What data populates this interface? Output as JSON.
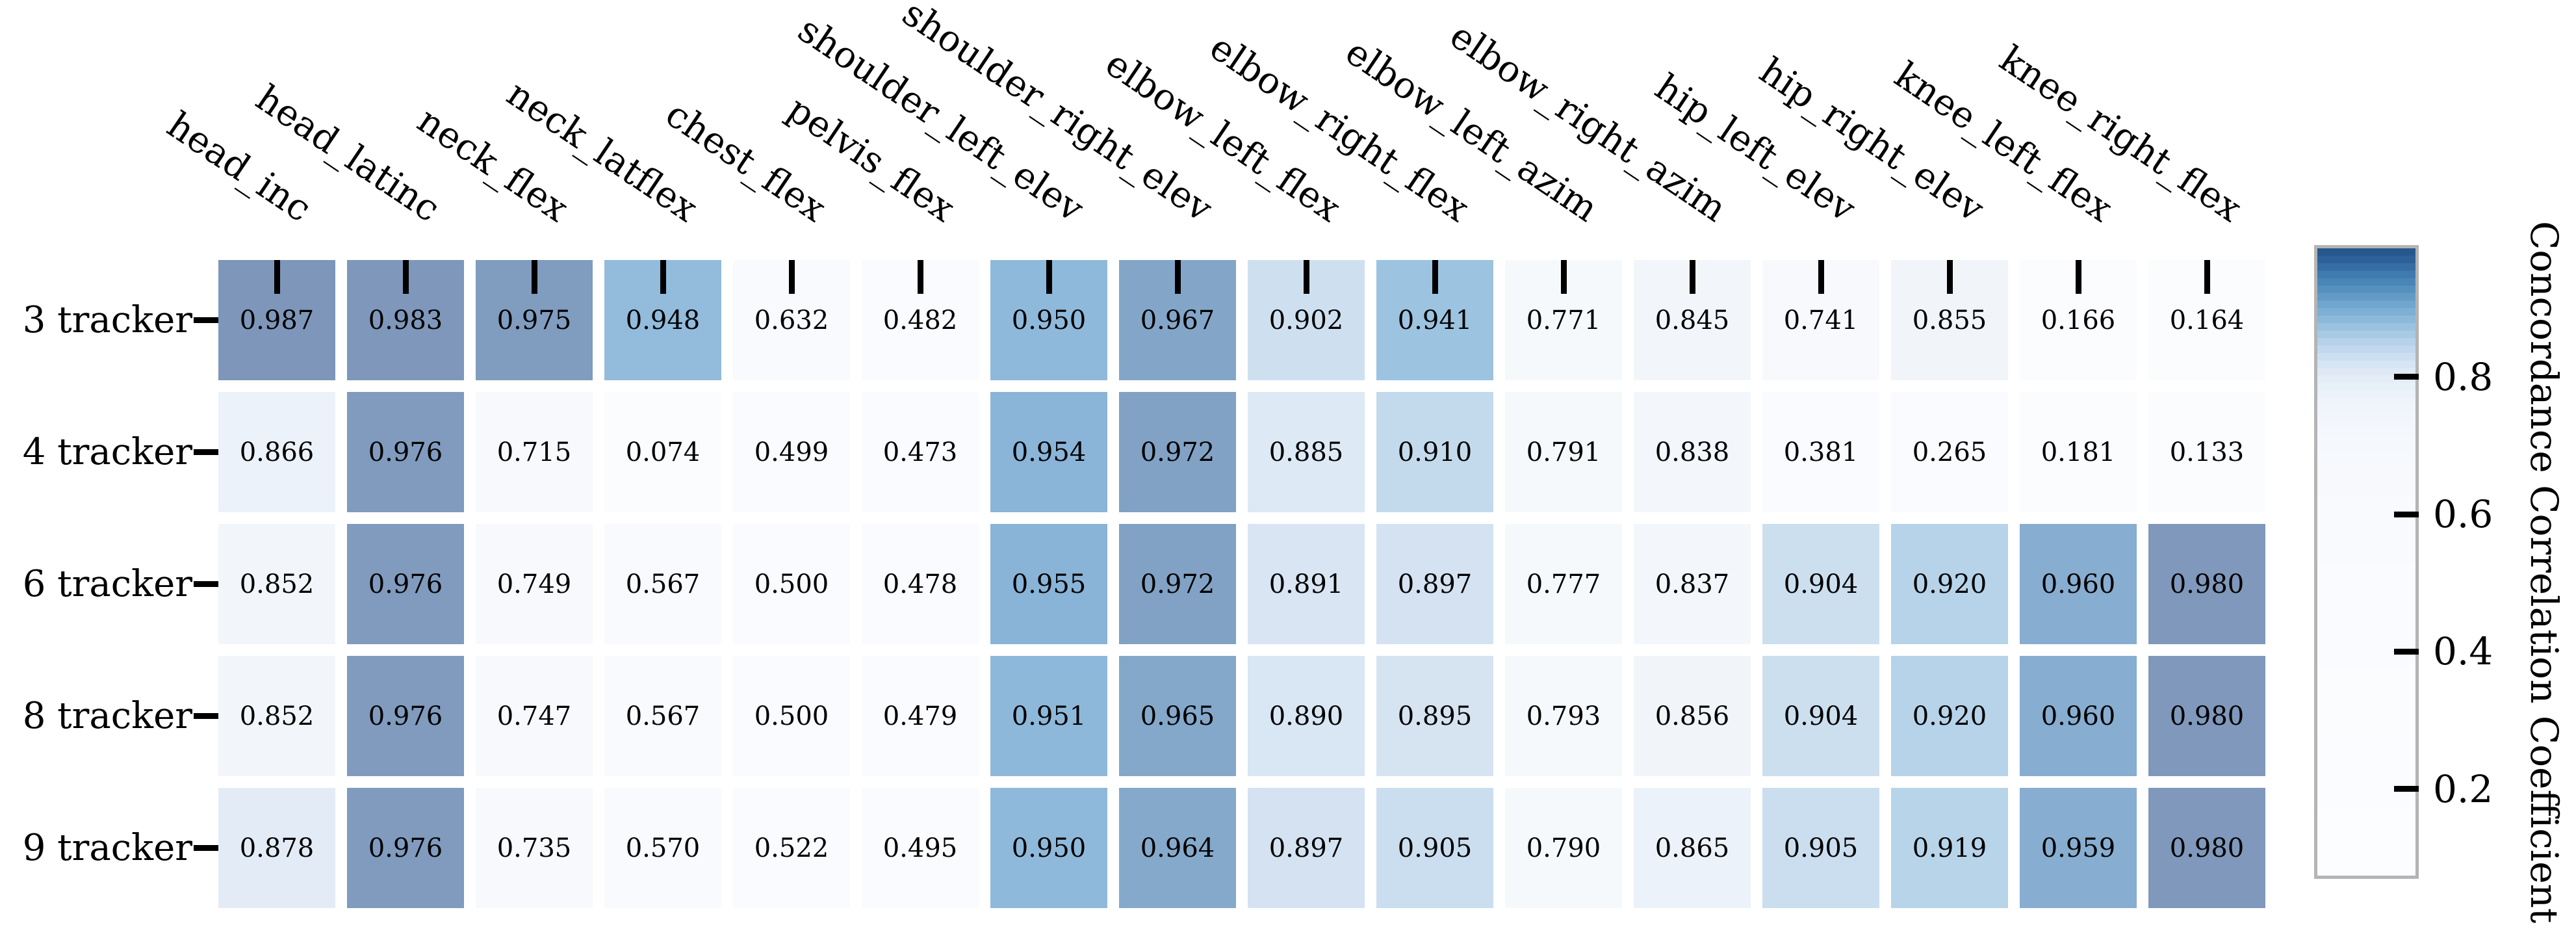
{
  "chart_data": {
    "type": "heatmap",
    "title": "",
    "xlabel": "",
    "ylabel": "",
    "rows": [
      "3 tracker",
      "4 tracker",
      "6 tracker",
      "8 tracker",
      "9 tracker"
    ],
    "columns": [
      "head_inc",
      "head_latinc",
      "neck_flex",
      "neck_latflex",
      "chest_flex",
      "pelvis_flex",
      "shoulder_left_elev",
      "shoulder_right_elev",
      "elbow_left_flex",
      "elbow_right_flex",
      "elbow_left_azim",
      "elbow_right_azim",
      "hip_left_elev",
      "hip_right_elev",
      "knee_left_flex",
      "knee_right_flex"
    ],
    "values": [
      [
        0.987,
        0.983,
        0.975,
        0.948,
        0.632,
        0.482,
        0.95,
        0.967,
        0.902,
        0.941,
        0.771,
        0.845,
        0.741,
        0.855,
        0.166,
        0.164
      ],
      [
        0.866,
        0.976,
        0.715,
        0.074,
        0.499,
        0.473,
        0.954,
        0.972,
        0.885,
        0.91,
        0.791,
        0.838,
        0.381,
        0.265,
        0.181,
        0.133
      ],
      [
        0.852,
        0.976,
        0.749,
        0.567,
        0.5,
        0.478,
        0.955,
        0.972,
        0.891,
        0.897,
        0.777,
        0.837,
        0.904,
        0.92,
        0.96,
        0.98
      ],
      [
        0.852,
        0.976,
        0.747,
        0.567,
        0.5,
        0.479,
        0.951,
        0.965,
        0.89,
        0.895,
        0.793,
        0.856,
        0.904,
        0.92,
        0.96,
        0.98
      ],
      [
        0.878,
        0.976,
        0.735,
        0.57,
        0.522,
        0.495,
        0.95,
        0.964,
        0.897,
        0.905,
        0.79,
        0.865,
        0.905,
        0.919,
        0.959,
        0.98
      ]
    ],
    "value_decimals": 3,
    "colorbar": {
      "label": "Concordance Correlation Coefficient",
      "ticks": [
        0.8,
        0.6,
        0.4,
        0.2
      ],
      "vmin": 0.074,
      "vmax": 0.987,
      "position": "right"
    },
    "colors": {
      "background": "#ffffff",
      "text": "#000000",
      "tick_mark": "#000000",
      "colorbar_border": "#b4b4b4",
      "cell_colormap_anchors": [
        [
          0.0,
          "#fbfcfe"
        ],
        [
          0.5,
          "#fafbfe"
        ],
        [
          0.63,
          "#f8fafd"
        ],
        [
          0.72,
          "#f7f9fd"
        ],
        [
          0.79,
          "#f6f9fc"
        ],
        [
          0.84,
          "#f3f7fb"
        ],
        [
          0.857,
          "#f1f5fa"
        ],
        [
          0.868,
          "#eaf1f9"
        ],
        [
          0.878,
          "#e3ecf6"
        ],
        [
          0.886,
          "#dce8f4"
        ],
        [
          0.895,
          "#d6e3f1"
        ],
        [
          0.903,
          "#cde0f0"
        ],
        [
          0.906,
          "#c9ddee"
        ],
        [
          0.911,
          "#c2d9ec"
        ],
        [
          0.92,
          "#b6d3e9"
        ],
        [
          0.941,
          "#9cc3e0"
        ],
        [
          0.949,
          "#90badb"
        ],
        [
          0.955,
          "#89b3d7"
        ],
        [
          0.96,
          "#87add0"
        ],
        [
          0.964,
          "#85a9cb"
        ],
        [
          0.967,
          "#83a6c8"
        ],
        [
          0.972,
          "#81a2c5"
        ],
        [
          0.975,
          "#809cbf"
        ],
        [
          0.977,
          "#7f9abd"
        ],
        [
          0.981,
          "#7f97ba"
        ],
        [
          0.988,
          "#7d96b9"
        ]
      ],
      "colorbar_gradient_anchors": [
        [
          0.0,
          "#1f4e80"
        ],
        [
          0.008,
          "#2a5b91"
        ],
        [
          0.016,
          "#2d6096"
        ],
        [
          0.024,
          "#31669e"
        ],
        [
          0.034,
          "#3a73a9"
        ],
        [
          0.046,
          "#4280b3"
        ],
        [
          0.058,
          "#4d89ba"
        ],
        [
          0.072,
          "#5e96c3"
        ],
        [
          0.086,
          "#6da3cc"
        ],
        [
          0.1,
          "#7cafd3"
        ],
        [
          0.115,
          "#8ebadb"
        ],
        [
          0.13,
          "#a0c6e2"
        ],
        [
          0.146,
          "#b2d0e9"
        ],
        [
          0.162,
          "#c3d9ee"
        ],
        [
          0.178,
          "#d1e2f1"
        ],
        [
          0.195,
          "#dde9f5"
        ],
        [
          0.215,
          "#e7eff8"
        ],
        [
          0.24,
          "#eef4fa"
        ],
        [
          0.275,
          "#f3f7fc"
        ],
        [
          0.34,
          "#f7f9fd"
        ],
        [
          0.55,
          "#fafbfe"
        ],
        [
          1.0,
          "#fcfdff"
        ]
      ]
    },
    "layout": {
      "grid_lines": false,
      "cell_gap_color": "#ffffff",
      "x_labels_rotation_deg": 34,
      "x_labels_position": "top",
      "y_labels_position": "left"
    }
  }
}
